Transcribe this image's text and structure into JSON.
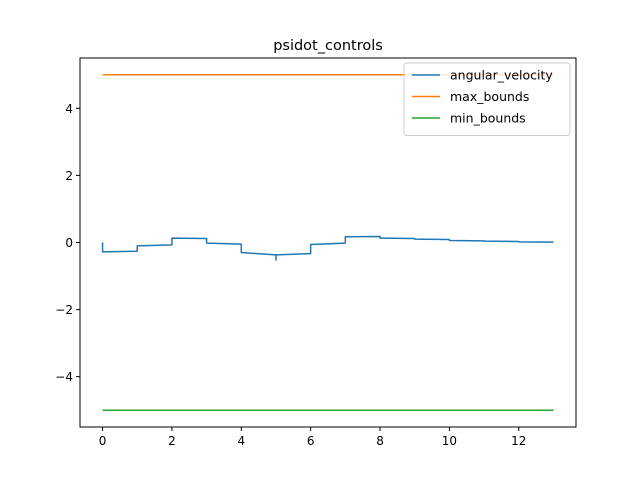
{
  "chart_data": {
    "type": "line",
    "title": "psidot_controls",
    "xlabel": "",
    "ylabel": "",
    "xlim": [
      -0.65,
      13.65
    ],
    "ylim": [
      -5.5,
      5.5
    ],
    "xticks": [
      0,
      2,
      4,
      6,
      8,
      10,
      12
    ],
    "yticks": [
      -4,
      -2,
      0,
      2,
      4
    ],
    "xtick_labels": [
      "0",
      "2",
      "4",
      "6",
      "8",
      "10",
      "12"
    ],
    "ytick_labels": [
      "−4",
      "−2",
      "0",
      "2",
      "4"
    ],
    "grid": false,
    "legend_position": "top-right",
    "series": [
      {
        "name": "angular_velocity",
        "color": "#1f77b4",
        "x": [
          0,
          0,
          1,
          1,
          2,
          2,
          3,
          3,
          4,
          4,
          5,
          5,
          5,
          6,
          6,
          7,
          7,
          8,
          8,
          9,
          9,
          10,
          10,
          11,
          11,
          12,
          12,
          13
        ],
        "y": [
          0,
          -0.28,
          -0.26,
          -0.1,
          -0.07,
          0.13,
          0.12,
          -0.02,
          -0.05,
          -0.3,
          -0.37,
          -0.52,
          -0.37,
          -0.33,
          -0.06,
          -0.02,
          0.17,
          0.18,
          0.13,
          0.12,
          0.1,
          0.09,
          0.06,
          0.05,
          0.04,
          0.03,
          0.02,
          0.01
        ]
      },
      {
        "name": "max_bounds",
        "color": "#ff7f0e",
        "x": [
          0,
          13
        ],
        "y": [
          5,
          5
        ]
      },
      {
        "name": "min_bounds",
        "color": "#2ca02c",
        "x": [
          0,
          13
        ],
        "y": [
          -5,
          -5
        ]
      }
    ]
  }
}
